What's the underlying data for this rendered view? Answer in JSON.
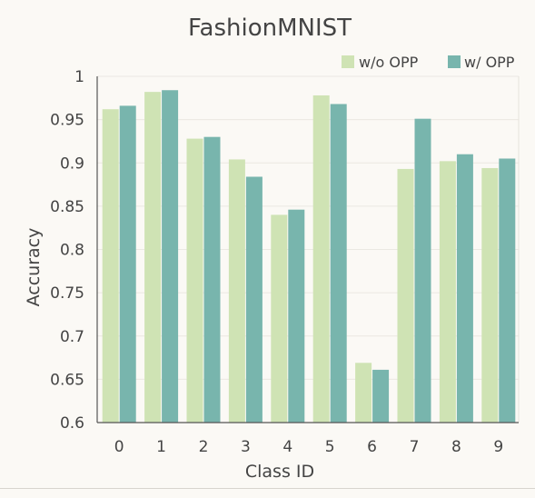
{
  "chart_data": {
    "type": "bar",
    "title": "FashionMNIST",
    "xlabel": "Class ID",
    "ylabel": "Accuracy",
    "categories": [
      "0",
      "1",
      "2",
      "3",
      "4",
      "5",
      "6",
      "7",
      "8",
      "9"
    ],
    "ylim": [
      0.6,
      1.0
    ],
    "yticks": [
      "0.6",
      "0.65",
      "0.7",
      "0.75",
      "0.8",
      "0.85",
      "0.9",
      "0.95",
      "1"
    ],
    "grid": true,
    "legend": "top-right",
    "series": [
      {
        "name": "w/o OPP",
        "color": "#cfe3b4",
        "values": [
          0.962,
          0.982,
          0.928,
          0.904,
          0.84,
          0.978,
          0.669,
          0.893,
          0.902,
          0.894
        ]
      },
      {
        "name": "w/ OPP",
        "color": "#78b5ad",
        "values": [
          0.966,
          0.984,
          0.93,
          0.884,
          0.846,
          0.968,
          0.661,
          0.951,
          0.91,
          0.905
        ]
      }
    ]
  }
}
